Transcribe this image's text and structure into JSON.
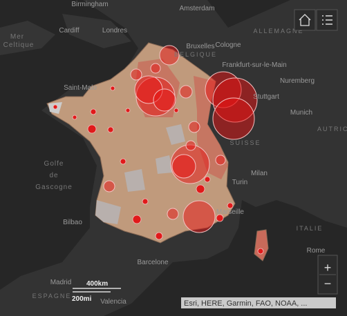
{
  "map": {
    "place_labels": {
      "birmingham": "Birmingham",
      "amsterdam": "Amsterdam",
      "cardiff": "Cardiff",
      "londres": "Londres",
      "mer": "Mer",
      "celtique": "Celtique",
      "allemagne": "ALLEMAGNE",
      "bruxelles": "Bruxelles",
      "cologne": "Cologne",
      "belgique": "BELGIQUE",
      "frankfurt": "Frankfurt-sur-le-Main",
      "nuremberg": "Nuremberg",
      "saint_malo": "Saint-Malo",
      "stuttgart": "Stuttgart",
      "munich": "Munich",
      "suisse": "SUISSE",
      "autriche": "AUTRICHE",
      "golfe": "Golfe",
      "de": "de",
      "gascogne": "Gascogne",
      "milan": "Milan",
      "turin": "Turin",
      "bilbao": "Bilbao",
      "marseille": "Marseille",
      "italie": "ITALIE",
      "rome": "Rome",
      "barcelone": "Barcelone",
      "madrid": "Madrid",
      "espagne": "ESPAGNE",
      "valencia": "Valencia"
    },
    "scale": {
      "km": "400km",
      "mi": "200mi"
    },
    "zoom": {
      "in": "+",
      "out": "−"
    },
    "attribution": "Esri, HERE, Garmin, FAO, NOAA, ..."
  }
}
